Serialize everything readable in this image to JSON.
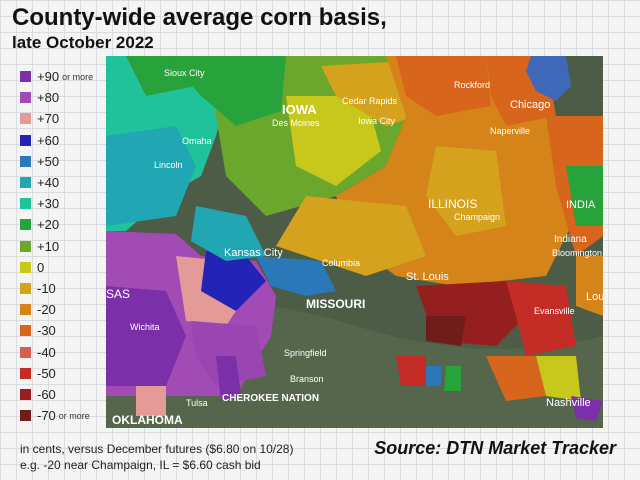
{
  "header": {
    "title": "County-wide average corn basis,",
    "subtitle": "late October 2022"
  },
  "legend": {
    "items": [
      {
        "label": "+90",
        "suffix": "or more",
        "color": "#7b2fa8"
      },
      {
        "label": "+80",
        "suffix": "",
        "color": "#a24bb4"
      },
      {
        "label": "+70",
        "suffix": "",
        "color": "#e49a96"
      },
      {
        "label": "+60",
        "suffix": "",
        "color": "#2323b5"
      },
      {
        "label": "+50",
        "suffix": "",
        "color": "#2a78b8"
      },
      {
        "label": "+40",
        "suffix": "",
        "color": "#21a6b4"
      },
      {
        "label": "+30",
        "suffix": "",
        "color": "#1fc29a"
      },
      {
        "label": "+20",
        "suffix": "",
        "color": "#28a23a"
      },
      {
        "label": "+10",
        "suffix": "",
        "color": "#6aa72c"
      },
      {
        "label": "0",
        "suffix": "",
        "color": "#c8c81c"
      },
      {
        "label": "-10",
        "suffix": "",
        "color": "#d4a21c"
      },
      {
        "label": "-20",
        "suffix": "",
        "color": "#d5841a"
      },
      {
        "label": "-30",
        "suffix": "",
        "color": "#d7651c"
      },
      {
        "label": "-40",
        "suffix": "",
        "color": "#d4614f"
      },
      {
        "label": "-50",
        "suffix": "",
        "color": "#c42c26"
      },
      {
        "label": "-60",
        "suffix": "",
        "color": "#951f1e"
      },
      {
        "label": "-70",
        "suffix": "or more",
        "color": "#6e1d1a"
      }
    ]
  },
  "map": {
    "labels": {
      "sioux_city": "Sioux City",
      "iowa": "IOWA",
      "des_moines": "Des Moines",
      "cedar_rapids": "Cedar Rapids",
      "iowa_city": "Iowa City",
      "rockford": "Rockford",
      "chicago": "Chicago",
      "naperville": "Naperville",
      "omaha": "Omaha",
      "lincoln": "Lincoln",
      "illinois": "ILLINOIS",
      "champaign": "Champaign",
      "india": "INDIA",
      "indiana": "Indiana",
      "bloomington": "Bloomington",
      "kansas_city": "Kansas City",
      "columbia": "Columbia",
      "st_louis": "St. Louis",
      "missouri": "MISSOURI",
      "sas": "SAS",
      "lou": "Lou",
      "wichita": "Wichita",
      "evansville": "Evansville",
      "springfield": "Springfield",
      "branson": "Branson",
      "tulsa": "Tulsa",
      "cherokee_nation": "CHEROKEE NATION",
      "oklahoma": "OKLAHOMA",
      "nashville": "Nashville"
    },
    "colors": {
      "lake": "#3f68b8",
      "terrain": "#4c5c46",
      "label_text": "#ffffff"
    }
  },
  "footer": {
    "note_line1": "in cents, versus December futures ($6.80 on 10/28)",
    "note_line2": "e.g. -20 near Champaign, IL = $6.60 cash bid",
    "source": "Source: DTN Market Tracker"
  }
}
